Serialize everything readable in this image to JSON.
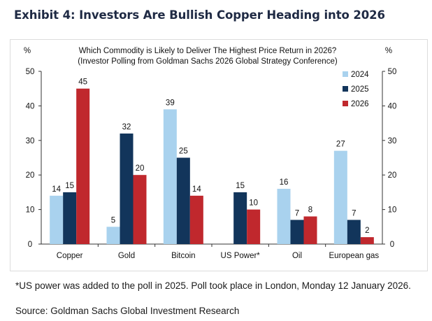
{
  "exhibit_title": "Exhibit 4: Investors Are Bullish Copper Heading into 2026",
  "footnote": "*US power was added to the poll in 2025. Poll took place in London, Monday 12 January 2026.",
  "source": "Source: Goldman Sachs Global Investment Research",
  "chart_data": {
    "type": "bar",
    "title": "Which Commodity is Likely to Deliver The Highest Price Return in 2026?",
    "subtitle": "(Investor Polling from Goldman Sachs 2026 Global Strategy Conference)",
    "ylabel_left": "%",
    "ylabel_right": "%",
    "ylim": [
      0,
      50
    ],
    "yticks": [
      0,
      10,
      20,
      30,
      40,
      50
    ],
    "legend_position": "top-right",
    "categories": [
      "Copper",
      "Gold",
      "Bitcoin",
      "US Power*",
      "Oil",
      "European gas"
    ],
    "series": [
      {
        "name": "2024",
        "color": "#a9d2ee",
        "values": [
          14,
          5,
          39,
          null,
          16,
          27
        ]
      },
      {
        "name": "2025",
        "color": "#12355b",
        "values": [
          15,
          32,
          25,
          15,
          7,
          7
        ]
      },
      {
        "name": "2026",
        "color": "#c0282d",
        "values": [
          45,
          20,
          14,
          10,
          8,
          2
        ]
      }
    ]
  }
}
